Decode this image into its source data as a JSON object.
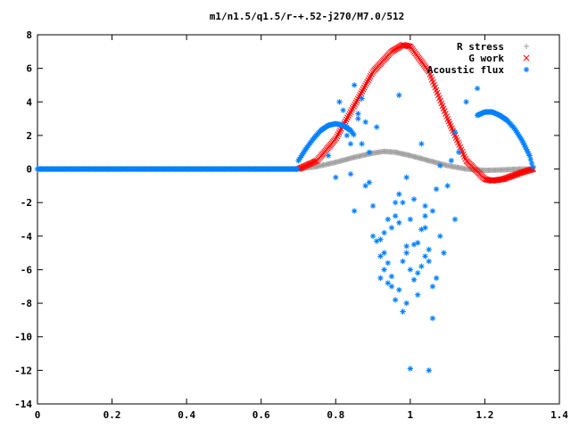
{
  "chart_data": {
    "type": "scatter",
    "title": "m1/n1.5/q1.5/r-+.52-j270/M7.0/512",
    "xlabel": "",
    "ylabel": "",
    "xlim": [
      0,
      1.4
    ],
    "ylim": [
      -14,
      8
    ],
    "xticks": [
      0,
      0.2,
      0.4,
      0.6,
      0.8,
      1,
      1.2,
      1.4
    ],
    "xtick_labels": [
      "0",
      "0.2",
      "0.4",
      "0.6",
      "0.8",
      "1",
      "1.2",
      "1.4"
    ],
    "yticks": [
      -14,
      -12,
      -10,
      -8,
      -6,
      -4,
      -2,
      0,
      2,
      4,
      6,
      8
    ],
    "ytick_labels": [
      "-14",
      "-12",
      "-10",
      "-8",
      "-6",
      "-4",
      "-2",
      "0",
      "2",
      "4",
      "6",
      "8"
    ],
    "grid": false,
    "legend_position": "top-right",
    "series": [
      {
        "name": "R stress",
        "marker": "plus",
        "color": "#a0a0a0",
        "description": "smooth hump from x=0.70 to x=1.33, peak ~1.05 at x~0.93, slightly negative near x~1.2",
        "x": [
          0.7,
          0.75,
          0.8,
          0.85,
          0.9,
          0.93,
          0.96,
          1.0,
          1.05,
          1.1,
          1.15,
          1.2,
          1.25,
          1.3,
          1.33
        ],
        "y": [
          0.0,
          0.15,
          0.4,
          0.7,
          0.95,
          1.05,
          1.0,
          0.8,
          0.5,
          0.2,
          0.0,
          -0.08,
          -0.05,
          0.0,
          0.0
        ]
      },
      {
        "name": "G work",
        "marker": "x",
        "color": "#ff0000",
        "description": "large hump from x=0.70 to x~1.15, peak ~7.4 at x~0.98, dip to ~-0.7 at x~1.22, back to 0 at x=1.33",
        "x": [
          0.7,
          0.75,
          0.8,
          0.85,
          0.9,
          0.95,
          0.98,
          1.0,
          1.05,
          1.1,
          1.15,
          1.2,
          1.22,
          1.25,
          1.3,
          1.33
        ],
        "y": [
          0.0,
          0.5,
          1.8,
          3.8,
          5.8,
          7.0,
          7.4,
          7.3,
          5.8,
          3.0,
          0.5,
          -0.6,
          -0.7,
          -0.6,
          -0.2,
          0.0
        ]
      },
      {
        "name": "Acoustic flux",
        "marker": "star",
        "color": "#0080ff",
        "description": "zero from x=0 to x~0.70; smooth arc 0.70-0.85 peaking ~2.7; noisy scatter 0.80-1.15 ranging -12 to 5; smooth arc 1.18-1.33 peaking ~3.4",
        "baseline": {
          "x_from": 0,
          "x_to": 0.7,
          "y": 0
        },
        "arc1": {
          "x": [
            0.7,
            0.72,
            0.74,
            0.76,
            0.78,
            0.8,
            0.82,
            0.84,
            0.85
          ],
          "y": [
            0.5,
            1.2,
            1.8,
            2.3,
            2.6,
            2.7,
            2.6,
            2.3,
            2.0
          ]
        },
        "arc2": {
          "x": [
            1.18,
            1.2,
            1.22,
            1.24,
            1.26,
            1.28,
            1.3,
            1.32,
            1.33
          ],
          "y": [
            3.2,
            3.4,
            3.4,
            3.2,
            2.9,
            2.4,
            1.7,
            0.8,
            0.0
          ]
        },
        "scatter": {
          "x": [
            0.78,
            0.8,
            0.82,
            0.83,
            0.84,
            0.85,
            0.86,
            0.87,
            0.88,
            0.89,
            0.9,
            0.91,
            0.92,
            0.93,
            0.94,
            0.95,
            0.96,
            0.97,
            0.98,
            0.99,
            1.0,
            1.01,
            1.02,
            1.03,
            1.04,
            1.05,
            1.06,
            1.07,
            1.08,
            1.09,
            1.1,
            1.11,
            1.12,
            1.13,
            0.81,
            0.83,
            0.85,
            0.87,
            0.89,
            0.9,
            0.91,
            0.92,
            0.93,
            0.94,
            0.95,
            0.96,
            0.97,
            0.98,
            0.99,
            1.0,
            1.01,
            1.02,
            1.03,
            1.04,
            1.05,
            1.06,
            1.07,
            1.08,
            0.92,
            0.93,
            0.94,
            0.95,
            0.96,
            0.97,
            0.98,
            0.99,
            1.0,
            1.01,
            1.02,
            1.03,
            1.04,
            1.05,
            1.06,
            0.99,
            1.04,
            0.97,
            1.18,
            1.15,
            1.12,
            0.86,
            0.88,
            0.84
          ],
          "y": [
            0.8,
            -0.5,
            3.5,
            2.0,
            1.5,
            -2.5,
            3.0,
            4.2,
            -1.0,
            1.0,
            -4.0,
            2.5,
            -6.5,
            -5.0,
            -3.0,
            -7.0,
            -2.0,
            4.4,
            -5.5,
            -8.0,
            -6.0,
            -4.5,
            -7.5,
            1.5,
            -3.5,
            -5.5,
            -2.5,
            -6.5,
            -4.0,
            -5.0,
            -1.0,
            0.5,
            -3.0,
            1.0,
            4.0,
            2.5,
            5.0,
            1.5,
            -0.8,
            -2.2,
            -4.3,
            -5.2,
            -6.0,
            -6.8,
            -3.5,
            -2.8,
            -7.2,
            -8.5,
            -4.6,
            -3.0,
            -1.8,
            -6.2,
            -5.8,
            -2.2,
            -4.8,
            -7.0,
            -1.2,
            0.2,
            -4.2,
            -3.8,
            -5.6,
            -6.4,
            -7.8,
            -3.2,
            -2.0,
            -5.0,
            -11.9,
            -6.6,
            -4.4,
            -3.6,
            -5.2,
            -12.0,
            -8.9,
            -0.5,
            -2.8,
            -1.5,
            4.8,
            4.0,
            2.2,
            3.3,
            2.8,
            -0.3
          ]
        }
      }
    ]
  }
}
